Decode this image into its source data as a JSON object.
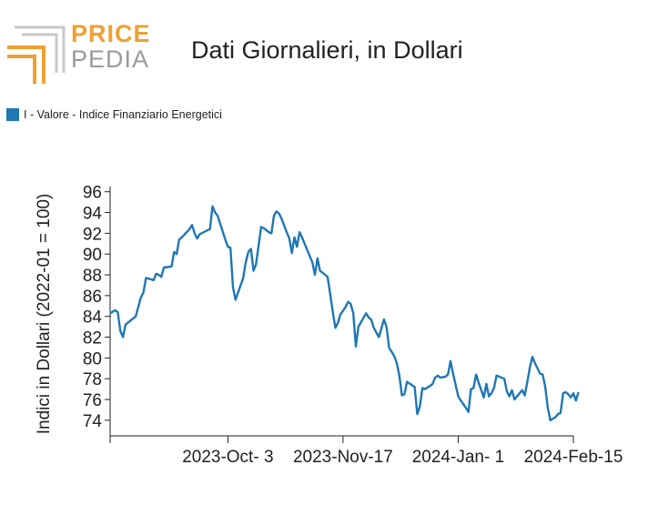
{
  "logo": {
    "line1": "PRICE",
    "line2": "PEDIA"
  },
  "colors": {
    "series": "#1f77b4",
    "logo_orange": "#f0a032",
    "logo_gray": "#9a9a9a"
  },
  "chart_data": {
    "type": "line",
    "title": "Dati Giornalieri, in Dollari",
    "ylabel": "Indici in Dollari (2022-01 = 100)",
    "xlabel": "",
    "ylim": [
      72.5,
      96.5
    ],
    "yticks": [
      74,
      76,
      78,
      80,
      82,
      84,
      86,
      88,
      90,
      92,
      94,
      96
    ],
    "xlim": [
      "2023-08-18",
      "2024-02-15"
    ],
    "xticks": [
      {
        "date": "2023-08-18",
        "label": ""
      },
      {
        "date": "2023-10-03",
        "label": "2023-Oct- 3"
      },
      {
        "date": "2023-11-17",
        "label": "2023-Nov-17"
      },
      {
        "date": "2024-01-01",
        "label": "2024-Jan- 1"
      },
      {
        "date": "2024-02-15",
        "label": "2024-Feb-15"
      }
    ],
    "legend": "top-left",
    "grid": false,
    "series": [
      {
        "name": "I - Valore - Indice Finanziario Energetici",
        "color": "#1f77b4",
        "points": [
          [
            "2023-08-18",
            84.3
          ],
          [
            "2023-08-20",
            84.6
          ],
          [
            "2023-08-21",
            84.4
          ],
          [
            "2023-08-22",
            82.6
          ],
          [
            "2023-08-23",
            82.0
          ],
          [
            "2023-08-24",
            83.2
          ],
          [
            "2023-08-28",
            84.0
          ],
          [
            "2023-08-30",
            85.8
          ],
          [
            "2023-08-31",
            86.3
          ],
          [
            "2023-09-01",
            87.7
          ],
          [
            "2023-09-04",
            87.5
          ],
          [
            "2023-09-05",
            88.1
          ],
          [
            "2023-09-06",
            88.0
          ],
          [
            "2023-09-07",
            87.8
          ],
          [
            "2023-09-08",
            88.7
          ],
          [
            "2023-09-11",
            88.8
          ],
          [
            "2023-09-12",
            90.2
          ],
          [
            "2023-09-13",
            90.0
          ],
          [
            "2023-09-14",
            91.4
          ],
          [
            "2023-09-15",
            91.6
          ],
          [
            "2023-09-18",
            92.4
          ],
          [
            "2023-09-19",
            92.8
          ],
          [
            "2023-09-20",
            92.0
          ],
          [
            "2023-09-21",
            91.5
          ],
          [
            "2023-09-22",
            91.9
          ],
          [
            "2023-09-25",
            92.3
          ],
          [
            "2023-09-26",
            92.4
          ],
          [
            "2023-09-27",
            94.6
          ],
          [
            "2023-09-28",
            94.0
          ],
          [
            "2023-09-29",
            93.7
          ],
          [
            "2023-10-02",
            91.4
          ],
          [
            "2023-10-03",
            90.7
          ],
          [
            "2023-10-04",
            90.6
          ],
          [
            "2023-10-05",
            86.8
          ],
          [
            "2023-10-06",
            85.6
          ],
          [
            "2023-10-09",
            87.7
          ],
          [
            "2023-10-10",
            89.2
          ],
          [
            "2023-10-11",
            90.2
          ],
          [
            "2023-10-12",
            90.5
          ],
          [
            "2023-10-13",
            88.4
          ],
          [
            "2023-10-14",
            89.0
          ],
          [
            "2023-10-16",
            92.6
          ],
          [
            "2023-10-17",
            92.5
          ],
          [
            "2023-10-19",
            92.1
          ],
          [
            "2023-10-20",
            92.0
          ],
          [
            "2023-10-21",
            93.7
          ],
          [
            "2023-10-22",
            94.1
          ],
          [
            "2023-10-23",
            93.9
          ],
          [
            "2023-10-24",
            93.4
          ],
          [
            "2023-10-26",
            92.1
          ],
          [
            "2023-10-27",
            91.5
          ],
          [
            "2023-10-28",
            90.1
          ],
          [
            "2023-10-29",
            91.6
          ],
          [
            "2023-10-30",
            90.7
          ],
          [
            "2023-10-31",
            92.1
          ],
          [
            "2023-11-01",
            91.6
          ],
          [
            "2023-11-02",
            91.0
          ],
          [
            "2023-11-03",
            90.4
          ],
          [
            "2023-11-05",
            89.2
          ],
          [
            "2023-11-06",
            88.0
          ],
          [
            "2023-11-07",
            89.6
          ],
          [
            "2023-11-08",
            88.4
          ],
          [
            "2023-11-10",
            88.0
          ],
          [
            "2023-11-11",
            87.8
          ],
          [
            "2023-11-13",
            84.4
          ],
          [
            "2023-11-14",
            82.9
          ],
          [
            "2023-11-15",
            83.4
          ],
          [
            "2023-11-16",
            84.2
          ],
          [
            "2023-11-18",
            84.9
          ],
          [
            "2023-11-19",
            85.4
          ],
          [
            "2023-11-20",
            85.2
          ],
          [
            "2023-11-21",
            84.3
          ],
          [
            "2023-11-22",
            81.1
          ],
          [
            "2023-11-23",
            83.0
          ],
          [
            "2023-11-26",
            84.3
          ],
          [
            "2023-11-27",
            83.9
          ],
          [
            "2023-11-28",
            83.7
          ],
          [
            "2023-11-29",
            82.9
          ],
          [
            "2023-12-01",
            82.0
          ],
          [
            "2023-12-03",
            83.7
          ],
          [
            "2023-12-04",
            83.0
          ],
          [
            "2023-12-05",
            81.0
          ],
          [
            "2023-12-07",
            80.2
          ],
          [
            "2023-12-08",
            79.5
          ],
          [
            "2023-12-09",
            78.3
          ],
          [
            "2023-12-10",
            76.4
          ],
          [
            "2023-12-11",
            76.5
          ],
          [
            "2023-12-12",
            77.7
          ],
          [
            "2023-12-15",
            77.2
          ],
          [
            "2023-12-16",
            74.6
          ],
          [
            "2023-12-17",
            75.3
          ],
          [
            "2023-12-18",
            77.1
          ],
          [
            "2023-12-19",
            77.0
          ],
          [
            "2023-12-21",
            77.3
          ],
          [
            "2023-12-22",
            77.5
          ],
          [
            "2023-12-23",
            78.1
          ],
          [
            "2023-12-24",
            78.3
          ],
          [
            "2023-12-25",
            78.1
          ],
          [
            "2023-12-27",
            78.2
          ],
          [
            "2023-12-28",
            78.4
          ],
          [
            "2023-12-29",
            79.7
          ],
          [
            "2023-12-30",
            78.5
          ],
          [
            "2024-01-01",
            76.3
          ],
          [
            "2024-01-02",
            75.9
          ],
          [
            "2024-01-04",
            75.2
          ],
          [
            "2024-01-05",
            74.8
          ],
          [
            "2024-01-06",
            77.0
          ],
          [
            "2024-01-07",
            77.1
          ],
          [
            "2024-01-08",
            78.4
          ],
          [
            "2024-01-09",
            77.6
          ],
          [
            "2024-01-10",
            76.9
          ],
          [
            "2024-01-11",
            76.2
          ],
          [
            "2024-01-12",
            77.5
          ],
          [
            "2024-01-13",
            76.3
          ],
          [
            "2024-01-14",
            76.6
          ],
          [
            "2024-01-15",
            77.1
          ],
          [
            "2024-01-16",
            78.3
          ],
          [
            "2024-01-19",
            78.0
          ],
          [
            "2024-01-20",
            76.8
          ],
          [
            "2024-01-21",
            76.3
          ],
          [
            "2024-01-22",
            76.9
          ],
          [
            "2024-01-23",
            76.0
          ],
          [
            "2024-01-24",
            76.3
          ],
          [
            "2024-01-26",
            76.9
          ],
          [
            "2024-01-27",
            76.4
          ],
          [
            "2024-01-28",
            77.7
          ],
          [
            "2024-01-29",
            79.1
          ],
          [
            "2024-01-30",
            80.1
          ],
          [
            "2024-01-31",
            79.5
          ],
          [
            "2024-02-02",
            78.5
          ],
          [
            "2024-02-03",
            78.4
          ],
          [
            "2024-02-04",
            77.2
          ],
          [
            "2024-02-05",
            75.2
          ],
          [
            "2024-02-06",
            74.0
          ],
          [
            "2024-02-08",
            74.3
          ],
          [
            "2024-02-09",
            74.6
          ],
          [
            "2024-02-10",
            74.7
          ],
          [
            "2024-02-11",
            76.6
          ],
          [
            "2024-02-12",
            76.7
          ],
          [
            "2024-02-13",
            76.5
          ],
          [
            "2024-02-14",
            76.2
          ],
          [
            "2024-02-15",
            76.6
          ],
          [
            "2024-02-16",
            75.9
          ],
          [
            "2024-02-17",
            76.7
          ]
        ]
      }
    ]
  }
}
